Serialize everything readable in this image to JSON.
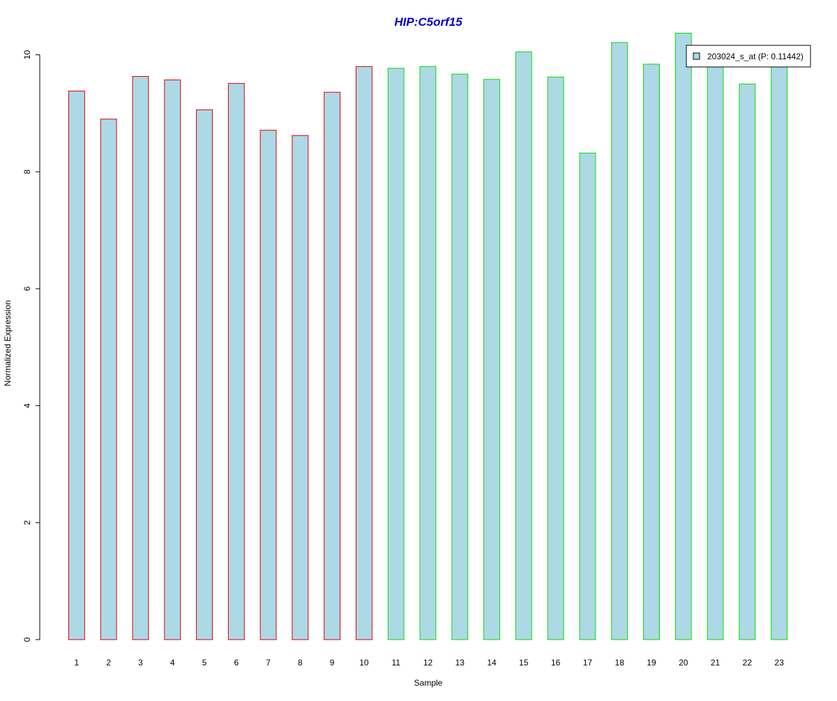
{
  "chart_data": {
    "type": "bar",
    "title": "HIP:C5orf15",
    "xlabel": "Sample",
    "ylabel": "Normalized Expression",
    "categories": [
      "1",
      "2",
      "3",
      "4",
      "5",
      "6",
      "7",
      "8",
      "9",
      "10",
      "11",
      "12",
      "13",
      "14",
      "15",
      "16",
      "17",
      "18",
      "19",
      "20",
      "21",
      "22",
      "23"
    ],
    "series": [
      {
        "name": "203024_s_at (P: 0.11442)",
        "values": [
          9.38,
          8.9,
          9.63,
          9.57,
          9.06,
          9.51,
          8.71,
          8.62,
          9.36,
          9.8,
          9.77,
          9.8,
          9.67,
          9.58,
          10.05,
          9.62,
          8.32,
          10.21,
          9.84,
          10.37,
          9.87,
          9.5,
          9.98
        ]
      }
    ],
    "groups": [
      {
        "from": 1,
        "to": 10,
        "border_color": "#e00000"
      },
      {
        "from": 11,
        "to": 23,
        "border_color": "#00e000"
      }
    ],
    "ylim": [
      0,
      10.4
    ],
    "yticks": [
      0,
      2,
      4,
      6,
      8,
      10
    ],
    "grid": false,
    "legend_position": "top-right",
    "colors": {
      "bar_fill": "#add8e6",
      "title": "#0000cc",
      "axis": "#000000"
    }
  }
}
